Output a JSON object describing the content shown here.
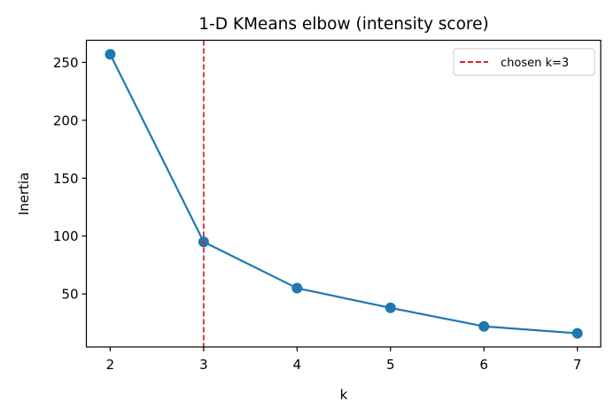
{
  "chart_data": {
    "type": "line",
    "title": "1-D KMeans elbow (intensity score)",
    "xlabel": "k",
    "ylabel": "Inertia",
    "x": [
      2,
      3,
      4,
      5,
      6,
      7
    ],
    "series": [
      {
        "name": "Inertia",
        "values": [
          257,
          95,
          55,
          38,
          22,
          16
        ],
        "color": "#1f77b4",
        "marker": "circle"
      }
    ],
    "x_ticks": [
      2,
      3,
      4,
      5,
      6,
      7
    ],
    "y_ticks": [
      50,
      100,
      150,
      200,
      250
    ],
    "xlim": [
      1.745,
      7.25
    ],
    "ylim": [
      4.2,
      269.1
    ],
    "grid": false,
    "annotations": [
      {
        "type": "vline",
        "x": 3,
        "style": "dashed",
        "color": "#d62728",
        "label": "chosen k=3"
      }
    ],
    "legend": {
      "position": "upper right",
      "entries": [
        "chosen k=3"
      ]
    }
  }
}
